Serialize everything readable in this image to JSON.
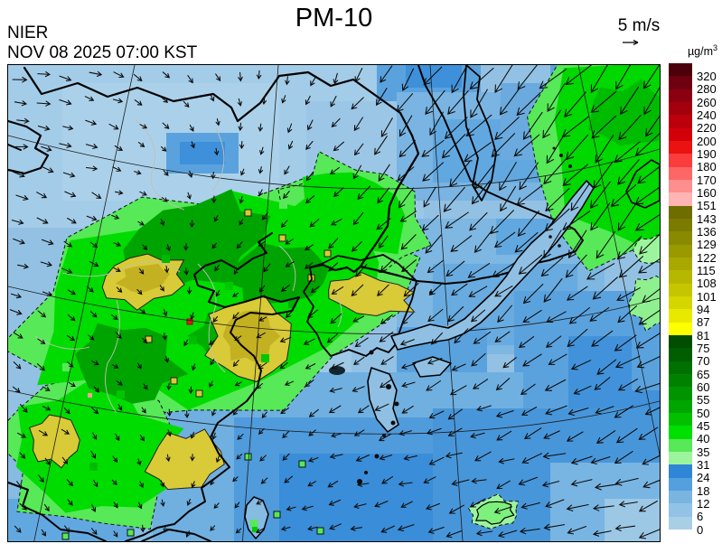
{
  "header": {
    "agency": "NIER",
    "datetime": "NOV 08 2025 07:00 KST",
    "title": "PM-10"
  },
  "wind_legend": {
    "speed_label": "5 m/s"
  },
  "colorbar": {
    "unit_base": "µg/m",
    "unit_exp": "3",
    "levels": [
      "320",
      "280",
      "260",
      "240",
      "220",
      "200",
      "190",
      "180",
      "170",
      "160",
      "151",
      "143",
      "136",
      "129",
      "122",
      "115",
      "108",
      "101",
      "94",
      "87",
      "81",
      "75",
      "70",
      "65",
      "60",
      "55",
      "50",
      "45",
      "40",
      "35",
      "31",
      "24",
      "18",
      "12",
      "6",
      "0"
    ],
    "colors": [
      "#4c000a",
      "#6f0010",
      "#8b0010",
      "#a3000e",
      "#bb000c",
      "#d3000a",
      "#eb1212",
      "#fa3c3c",
      "#ff6666",
      "#ff8e8e",
      "#ffb4b4",
      "#6d6d00",
      "#7b7b00",
      "#8a8a00",
      "#999900",
      "#a8a800",
      "#b7b700",
      "#c6c600",
      "#d5d500",
      "#e9e900",
      "#ffff00",
      "#004c00",
      "#005e00",
      "#007000",
      "#008200",
      "#009400",
      "#00a600",
      "#00c000",
      "#00e000",
      "#57e957",
      "#9cf59c",
      "#2f86d6",
      "#549fdd",
      "#7ab5e2",
      "#92c3e6",
      "#a9cfe6"
    ]
  },
  "map": {
    "arrow_color": "#0b0b0b",
    "wind_grid": {
      "cols": 7,
      "rows": 6,
      "u": [
        [
          9,
          7,
          2,
          -3,
          -13,
          -19,
          -21
        ],
        [
          9,
          6,
          0,
          -5,
          -15,
          -21,
          -23
        ],
        [
          8,
          5,
          -3,
          -7,
          -11,
          -15,
          -19
        ],
        [
          6,
          4,
          -4,
          -8,
          -9,
          -12,
          -15
        ],
        [
          5,
          3,
          -2,
          -7,
          -10,
          -13,
          -15
        ],
        [
          4,
          2,
          -3,
          -8,
          -11,
          -13,
          -14
        ]
      ],
      "v": [
        [
          2,
          3,
          5,
          7,
          15,
          21,
          23
        ],
        [
          2,
          2,
          4,
          6,
          17,
          23,
          25
        ],
        [
          3,
          3,
          4,
          5,
          11,
          15,
          17
        ],
        [
          4,
          3,
          3,
          4,
          6,
          8,
          10
        ],
        [
          4,
          4,
          4,
          3,
          4,
          5,
          7
        ],
        [
          4,
          4,
          3,
          2,
          3,
          3,
          4
        ]
      ]
    }
  }
}
